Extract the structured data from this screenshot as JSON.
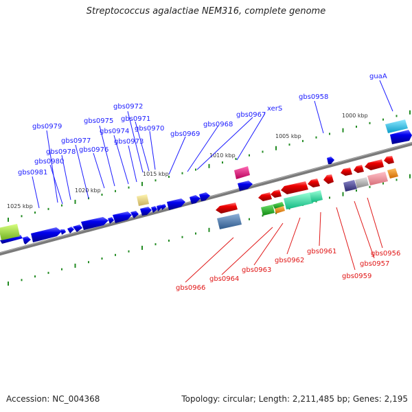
{
  "title": "Streptococcus agalactiae NEM316, complete genome",
  "accession": "Accession: NC_004368",
  "topology": "Topology: circular; Length: 2,211,485 bp; Genes: 2,195",
  "colors": {
    "forward_gene": "#0000ee",
    "reverse_gene": "#ee0000",
    "forward_label": "#1a1aff",
    "reverse_label": "#e01515",
    "backbone": "#808080",
    "tick": "#228b22"
  },
  "scale_labels": [
    "1000 kbp",
    "1005 kbp",
    "1010 kbp",
    "1015 kbp",
    "1020 kbp",
    "1025 kbp"
  ],
  "forward_gene_labels": [
    "guaA",
    "gbs0958",
    "xerS",
    "gbs0967",
    "gbs0968",
    "gbs0969",
    "gbs0970",
    "gbs0971",
    "gbs0972",
    "gbs0973",
    "gbs0974",
    "gbs0975",
    "gbs0976",
    "gbs0977",
    "gbs0978",
    "gbs0979",
    "gbs0980",
    "gbs0981"
  ],
  "reverse_gene_labels": [
    "gbs0956",
    "gbs0957",
    "gbs0959",
    "gbs0961",
    "gbs0962",
    "gbs0963",
    "gbs0964",
    "gbs0966"
  ]
}
